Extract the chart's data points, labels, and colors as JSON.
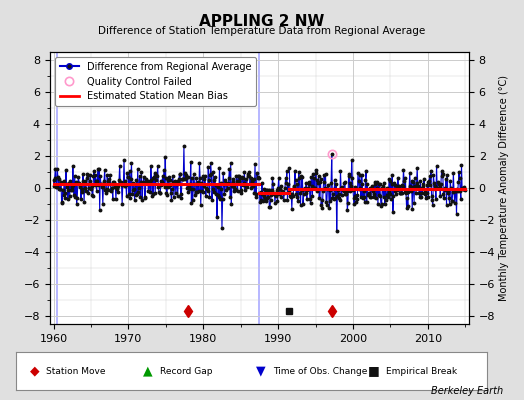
{
  "title": "APPLING 2 NW",
  "subtitle": "Difference of Station Temperature Data from Regional Average",
  "ylabel": "Monthly Temperature Anomaly Difference (°C)",
  "xlabel_credit": "Berkeley Earth",
  "xlim": [
    1959.5,
    2015.5
  ],
  "ylim": [
    -8.5,
    8.5
  ],
  "yticks": [
    -8,
    -6,
    -4,
    -2,
    0,
    2,
    4,
    6,
    8
  ],
  "xticks": [
    1960,
    1970,
    1980,
    1990,
    2000,
    2010
  ],
  "bg_color": "#e0e0e0",
  "plot_bg_color": "#ffffff",
  "grid_color": "#cccccc",
  "main_line_color": "#0000cc",
  "dot_color": "#111111",
  "bias_line_color": "#ff0000",
  "gap_line_color": "#aaaaff",
  "station_move_color": "#cc0000",
  "empirical_break_color": "#111111",
  "qc_fail_color": "#ff99cc",
  "time_obs_color": "#0000cc",
  "record_gap_color": "#009900",
  "segment1_start": 1960.0,
  "segment1_end": 1987.5,
  "segment1_bias": 0.22,
  "segment2_start": 1987.5,
  "segment2_end": 1991.5,
  "segment2_bias": -0.3,
  "segment3_start": 1991.5,
  "segment3_end": 2015.0,
  "segment3_bias": -0.05,
  "gap1_x": 1960.5,
  "gap2_x": 1987.5,
  "station_move1_x": 1978.0,
  "station_move2_x": 1997.2,
  "empirical_break_x": 1991.5,
  "qc_fail_x": 1997.2,
  "qc_fail_y": 2.1,
  "time_obs_x": 1987.5
}
